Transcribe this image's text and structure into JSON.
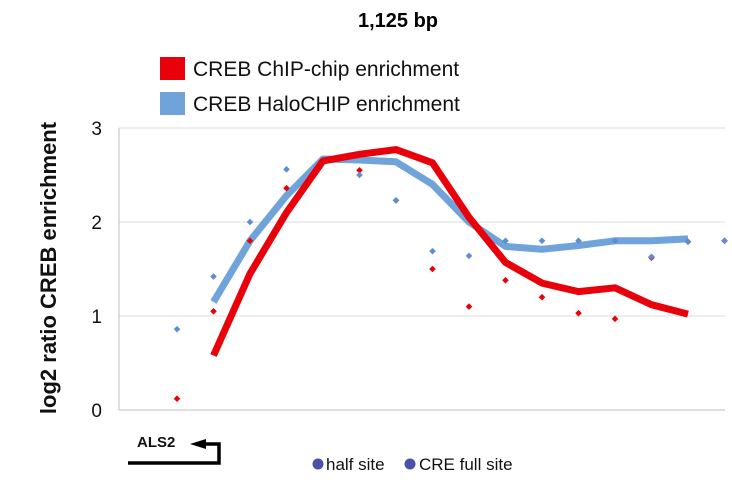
{
  "title": "1,125 bp",
  "gene_label": "ALS2",
  "site_legend": [
    {
      "label": "half site",
      "color": "#4a52a8"
    },
    {
      "label": "CRE full site",
      "color": "#4a52a8"
    }
  ],
  "colors": {
    "chip_chip": "#e8000b",
    "halochip": "#6fa3d9",
    "grid": "#dcdcdc",
    "axis": "#bfbfbf"
  },
  "chart_data": {
    "type": "line",
    "title": "1,125 bp",
    "xlabel": "",
    "ylabel": "log2 ratio CREB enrichment",
    "ylim": [
      0,
      3
    ],
    "yticks": [
      0,
      1,
      2,
      3
    ],
    "x": [
      1,
      2,
      3,
      4,
      5,
      6,
      7,
      8,
      9,
      10,
      11,
      12,
      13,
      14,
      15,
      16
    ],
    "series": [
      {
        "name": "CREB ChIP-chip enrichment",
        "color": "#e8000b",
        "values": [
          null,
          0.58,
          1.45,
          2.1,
          2.65,
          2.72,
          2.77,
          2.63,
          2.05,
          1.57,
          1.35,
          1.26,
          1.3,
          1.12,
          1.02,
          null
        ]
      },
      {
        "name": "CREB HaloCHIP enrichment",
        "color": "#6fa3d9",
        "values": [
          null,
          1.15,
          1.8,
          2.28,
          2.67,
          2.66,
          2.64,
          2.4,
          2.0,
          1.74,
          1.71,
          1.75,
          1.8,
          1.8,
          1.82,
          null
        ]
      }
    ],
    "markers": [
      {
        "series": "CREB ChIP-chip enrichment",
        "x": [
          1,
          2,
          3,
          4,
          6,
          7,
          8,
          9,
          10,
          11,
          12,
          13,
          14,
          15,
          16
        ],
        "values": [
          0.12,
          1.05,
          1.8,
          2.36,
          2.55,
          2.23,
          1.5,
          1.1,
          1.38,
          1.2,
          1.03,
          0.97,
          1.62,
          1.79,
          1.8
        ]
      },
      {
        "series": "CREB HaloCHIP enrichment",
        "x": [
          1,
          2,
          3,
          4,
          6,
          7,
          8,
          9,
          10,
          11,
          12,
          13,
          14,
          15,
          16
        ],
        "values": [
          0.86,
          1.42,
          2.0,
          2.56,
          2.5,
          2.23,
          1.69,
          1.64,
          1.8,
          1.8,
          1.8,
          1.8,
          1.63,
          1.79,
          1.8
        ]
      }
    ]
  }
}
